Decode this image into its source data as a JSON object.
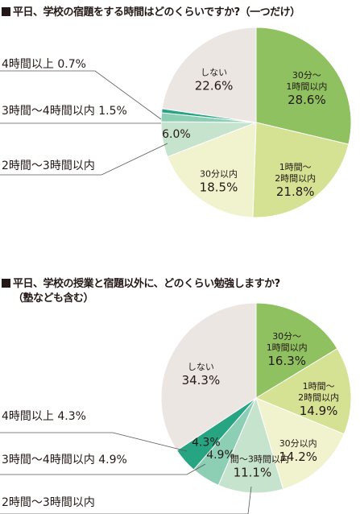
{
  "chart_data": [
    {
      "type": "pie",
      "title": "平日、学校の宿題をする時間はどのくらいですか?（一つだけ）",
      "slices": [
        {
          "label": "30分～\n1時間以内",
          "value": 28.6,
          "value_label": "28.6%",
          "color": "#8fc160"
        },
        {
          "label": "1時間～\n2時間以内",
          "value": 21.8,
          "value_label": "21.8%",
          "color": "#d5e193"
        },
        {
          "label": "30分以内",
          "value": 18.5,
          "value_label": "18.5%",
          "color": "#f1f3cf"
        },
        {
          "label": "2時間～3時間以内",
          "value": 6.0,
          "value_label": "6.0%",
          "color": "#c6e3ce"
        },
        {
          "label": "3時間～4時間以内",
          "value": 1.5,
          "value_label": "1.5%",
          "color": "#8ccfb4"
        },
        {
          "label": "4時間以上",
          "value": 0.7,
          "value_label": "0.7%",
          "color": "#27a583"
        },
        {
          "label": "しない",
          "value": 22.6,
          "value_label": "22.6%",
          "color": "#ece6e3"
        }
      ],
      "callouts": [
        {
          "text": "4時間以上 0.7%"
        },
        {
          "text": "3時間～4時間以内 1.5%"
        },
        {
          "text": "2時間～3時間以内"
        }
      ]
    },
    {
      "type": "pie",
      "title": "平日、学校の授業と宿題以外に、どのくらい勉強しますか?",
      "title_line2": "（塾なども含む）",
      "slices": [
        {
          "label": "30分～\n1時間以内",
          "value": 16.3,
          "value_label": "16.3%",
          "color": "#8fc160"
        },
        {
          "label": "1時間～\n2時間以内",
          "value": 14.9,
          "value_label": "14.9%",
          "color": "#d5e193"
        },
        {
          "label": "30分以内",
          "value": 14.2,
          "value_label": "14.2%",
          "color": "#f1f3cf"
        },
        {
          "label": "2時間～3時間以内",
          "value": 11.1,
          "value_label": "11.1%",
          "color": "#c6e3ce"
        },
        {
          "label": "3時間～4時間以内",
          "value": 4.9,
          "value_label": "4.9%",
          "color": "#8ccfb4"
        },
        {
          "label": "4時間以上",
          "value": 4.3,
          "value_label": "4.3%",
          "color": "#27a583"
        },
        {
          "label": "しない",
          "value": 34.3,
          "value_label": "34.3%",
          "color": "#ece6e3"
        }
      ],
      "callouts": [
        {
          "text": "4時間以上 4.3%"
        },
        {
          "text": "3時間～4時間以内 4.9%"
        },
        {
          "text": "2時間～3時間以内"
        }
      ]
    }
  ]
}
